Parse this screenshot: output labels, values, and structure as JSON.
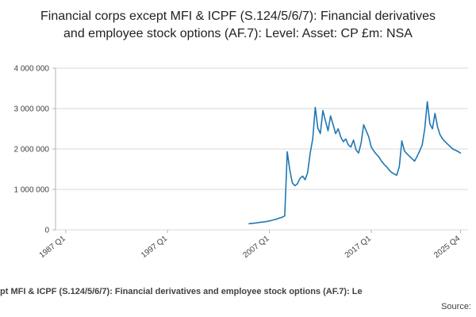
{
  "chart_data": {
    "type": "line",
    "title": "Financial corps except MFI & ICPF (S.124/5/6/7): Financial derivatives and employee stock options (AF.7): Level: Asset: CP £m: NSA",
    "series_name": "Financial corps except MFI & ICPF (S.124/5/6/7): Financial derivatives and employee stock options (AF.7): Level: Asset: CP £m: NSA",
    "line_color": "#1f77b4",
    "grid_color": "#d9d9d9",
    "axis_color": "#b3b3b3",
    "text_color": "#414042",
    "legend_position": "bottom",
    "grid": "horizontal",
    "ylim": [
      0,
      4000000
    ],
    "y_ticks": [
      0,
      1000000,
      2000000,
      3000000,
      4000000
    ],
    "x_ticks": [
      "1987 Q1",
      "1997 Q1",
      "2007 Q1",
      "2017 Q1",
      "2025 Q4"
    ],
    "xlim_quarters": [
      "1986 Q1",
      "2026 Q3"
    ],
    "xlabel": "",
    "ylabel": "",
    "quarters": [
      "2005 Q1",
      "2005 Q2",
      "2005 Q3",
      "2005 Q4",
      "2006 Q1",
      "2006 Q2",
      "2006 Q3",
      "2006 Q4",
      "2007 Q1",
      "2007 Q2",
      "2007 Q3",
      "2007 Q4",
      "2008 Q1",
      "2008 Q2",
      "2008 Q3",
      "2008 Q4",
      "2009 Q1",
      "2009 Q2",
      "2009 Q3",
      "2009 Q4",
      "2010 Q1",
      "2010 Q2",
      "2010 Q3",
      "2010 Q4",
      "2011 Q1",
      "2011 Q2",
      "2011 Q3",
      "2011 Q4",
      "2012 Q1",
      "2012 Q2",
      "2012 Q3",
      "2012 Q4",
      "2013 Q1",
      "2013 Q2",
      "2013 Q3",
      "2013 Q4",
      "2014 Q1",
      "2014 Q2",
      "2014 Q3",
      "2014 Q4",
      "2015 Q1",
      "2015 Q2",
      "2015 Q3",
      "2015 Q4",
      "2016 Q1",
      "2016 Q2",
      "2016 Q3",
      "2016 Q4",
      "2017 Q1",
      "2017 Q2",
      "2017 Q3",
      "2017 Q4",
      "2018 Q1",
      "2018 Q2",
      "2018 Q3",
      "2018 Q4",
      "2019 Q1",
      "2019 Q2",
      "2019 Q3",
      "2019 Q4",
      "2020 Q1",
      "2020 Q2",
      "2020 Q3",
      "2020 Q4",
      "2021 Q1",
      "2021 Q2",
      "2021 Q3",
      "2021 Q4",
      "2022 Q1",
      "2022 Q2",
      "2022 Q3",
      "2022 Q4",
      "2023 Q1",
      "2023 Q2",
      "2023 Q3",
      "2023 Q4",
      "2024 Q1",
      "2024 Q2",
      "2024 Q3",
      "2024 Q4",
      "2025 Q1",
      "2025 Q2",
      "2025 Q3",
      "2025 Q4"
    ],
    "values": [
      150000,
      158000,
      165000,
      172000,
      182000,
      190000,
      198000,
      207000,
      220000,
      235000,
      252000,
      268000,
      295000,
      310000,
      345000,
      1930000,
      1480000,
      1160000,
      1090000,
      1140000,
      1270000,
      1330000,
      1240000,
      1420000,
      1900000,
      2250000,
      3030000,
      2520000,
      2380000,
      2950000,
      2700000,
      2450000,
      2820000,
      2600000,
      2380000,
      2500000,
      2300000,
      2180000,
      2250000,
      2100000,
      2050000,
      2220000,
      1980000,
      1900000,
      2150000,
      2600000,
      2450000,
      2300000,
      2050000,
      1950000,
      1870000,
      1800000,
      1700000,
      1620000,
      1560000,
      1480000,
      1420000,
      1380000,
      1350000,
      1560000,
      2200000,
      1950000,
      1880000,
      1820000,
      1760000,
      1700000,
      1820000,
      1950000,
      2100000,
      2500000,
      3170000,
      2620000,
      2500000,
      2880000,
      2550000,
      2350000,
      2250000,
      2180000,
      2120000,
      2060000,
      2000000,
      1970000,
      1940000,
      1900000
    ]
  },
  "footer": {
    "legend": "pt MFI & ICPF (S.124/5/6/7): Financial derivatives and employee stock options (AF.7): Le",
    "source": "Source:"
  }
}
